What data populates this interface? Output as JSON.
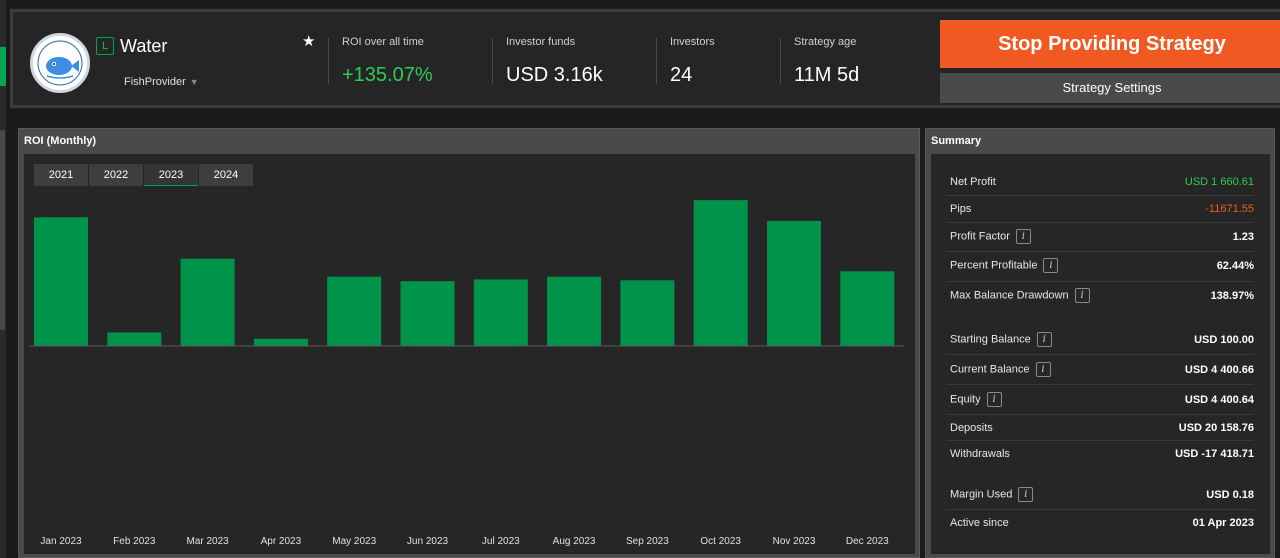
{
  "header": {
    "level_badge": "L",
    "strategy_name": "Water",
    "provider": "FishProvider",
    "provider_caret": "▼",
    "star_icon": "★",
    "stats": [
      {
        "label": "ROI over all time",
        "value": "+135.07%",
        "color": "#2ecc55"
      },
      {
        "label": "Investor funds",
        "value": "USD 3.16k"
      },
      {
        "label": "Investors",
        "value": "24"
      },
      {
        "label": "Strategy age",
        "value": "11M 5d"
      }
    ],
    "stop_button": "Stop Providing Strategy",
    "settings_button": "Strategy Settings"
  },
  "roi_panel": {
    "title": "ROI (Monthly)",
    "years": [
      "2021",
      "2022",
      "2023",
      "2024"
    ],
    "active_year": "2023"
  },
  "chart_data": {
    "type": "bar",
    "categories": [
      "Jan 2023",
      "Feb 2023",
      "Mar 2023",
      "Apr 2023",
      "May 2023",
      "Jun 2023",
      "Jul 2023",
      "Aug 2023",
      "Sep 2023",
      "Oct 2023",
      "Nov 2023",
      "Dec 2023"
    ],
    "values": [
      143,
      15,
      97,
      8,
      77,
      72,
      74,
      77,
      73,
      162,
      139,
      83
    ],
    "ylim": [
      -200,
      180
    ],
    "color": "#00944a",
    "grid": false
  },
  "summary": {
    "title": "Summary",
    "rows": [
      {
        "label": "Net Profit",
        "value": "USD 1 660.61",
        "style": "green"
      },
      {
        "label": "Pips",
        "value": "-11671.55",
        "style": "orange"
      },
      {
        "label": "Profit Factor",
        "value": "1.23",
        "info": true
      },
      {
        "label": "Percent Profitable",
        "value": "62.44%",
        "info": true
      },
      {
        "label": "Max Balance Drawdown",
        "value": "138.97%",
        "info": true
      },
      {
        "label": "Starting Balance",
        "value": "USD 100.00",
        "info": true
      },
      {
        "label": "Current Balance",
        "value": "USD 4 400.66",
        "info": true
      },
      {
        "label": "Equity",
        "value": "USD 4 400.64",
        "info": true
      },
      {
        "label": "Deposits",
        "value": "USD 20 158.76"
      },
      {
        "label": "Withdrawals",
        "value": "USD -17 418.71"
      },
      {
        "label": "Margin Used",
        "value": "USD 0.18",
        "info": true
      },
      {
        "label": "Active since",
        "value": "01 Apr 2023"
      }
    ],
    "info_glyph": "i"
  }
}
